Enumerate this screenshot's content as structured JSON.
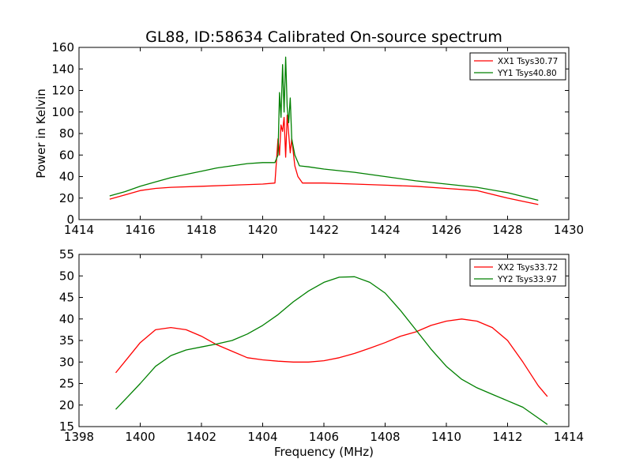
{
  "chart_data": [
    {
      "type": "line",
      "title": "GL88, ID:58634 Calibrated On-source spectrum",
      "xlabel": "",
      "ylabel": "Power in Kelvin",
      "xlim": [
        1414,
        1430
      ],
      "ylim": [
        0,
        160
      ],
      "xticks": [
        "1414",
        "1416",
        "1418",
        "1420",
        "1422",
        "1424",
        "1426",
        "1428",
        "1430"
      ],
      "yticks": [
        "0",
        "20",
        "40",
        "60",
        "80",
        "100",
        "120",
        "140",
        "160"
      ],
      "legend_position": "top-right",
      "series": [
        {
          "name": "XX1 Tsys30.77",
          "color": "#ff0000",
          "points": [
            [
              1415.0,
              19
            ],
            [
              1415.5,
              23
            ],
            [
              1416.0,
              27
            ],
            [
              1416.5,
              29
            ],
            [
              1417.0,
              30
            ],
            [
              1418.0,
              31
            ],
            [
              1419.0,
              32
            ],
            [
              1420.0,
              33
            ],
            [
              1420.4,
              34
            ],
            [
              1420.5,
              75
            ],
            [
              1420.55,
              60
            ],
            [
              1420.6,
              88
            ],
            [
              1420.65,
              82
            ],
            [
              1420.7,
              95
            ],
            [
              1420.75,
              58
            ],
            [
              1420.8,
              97
            ],
            [
              1420.85,
              80
            ],
            [
              1420.9,
              62
            ],
            [
              1420.95,
              75
            ],
            [
              1421.05,
              50
            ],
            [
              1421.15,
              40
            ],
            [
              1421.3,
              34
            ],
            [
              1422.0,
              34
            ],
            [
              1423.0,
              33
            ],
            [
              1424.0,
              32
            ],
            [
              1425.0,
              31
            ],
            [
              1426.0,
              29
            ],
            [
              1427.0,
              27
            ],
            [
              1428.0,
              20
            ],
            [
              1429.0,
              14
            ]
          ]
        },
        {
          "name": "YY1 Tsys40.80",
          "color": "#008000",
          "points": [
            [
              1415.0,
              22
            ],
            [
              1415.5,
              26
            ],
            [
              1416.0,
              31
            ],
            [
              1416.5,
              35
            ],
            [
              1417.0,
              39
            ],
            [
              1417.5,
              42
            ],
            [
              1418.0,
              45
            ],
            [
              1418.5,
              48
            ],
            [
              1419.0,
              50
            ],
            [
              1419.5,
              52
            ],
            [
              1420.0,
              53
            ],
            [
              1420.4,
              53
            ],
            [
              1420.5,
              60
            ],
            [
              1420.55,
              118
            ],
            [
              1420.6,
              95
            ],
            [
              1420.65,
              144
            ],
            [
              1420.7,
              100
            ],
            [
              1420.75,
              151
            ],
            [
              1420.8,
              105
            ],
            [
              1420.85,
              90
            ],
            [
              1420.9,
              113
            ],
            [
              1420.95,
              75
            ],
            [
              1421.05,
              60
            ],
            [
              1421.2,
              50
            ],
            [
              1421.5,
              49
            ],
            [
              1422.0,
              47
            ],
            [
              1423.0,
              44
            ],
            [
              1424.0,
              40
            ],
            [
              1425.0,
              36
            ],
            [
              1426.0,
              33
            ],
            [
              1427.0,
              30
            ],
            [
              1428.0,
              25
            ],
            [
              1429.0,
              18
            ]
          ]
        }
      ]
    },
    {
      "type": "line",
      "title": "",
      "xlabel": "Frequency (MHz)",
      "ylabel": "",
      "xlim": [
        1398,
        1414
      ],
      "ylim": [
        15,
        55
      ],
      "xticks": [
        "1398",
        "1400",
        "1402",
        "1404",
        "1406",
        "1408",
        "1410",
        "1412",
        "1414"
      ],
      "yticks": [
        "15",
        "20",
        "25",
        "30",
        "35",
        "40",
        "45",
        "50",
        "55"
      ],
      "legend_position": "top-right",
      "series": [
        {
          "name": "XX2 Tsys33.72",
          "color": "#ff0000",
          "points": [
            [
              1399.2,
              27.5
            ],
            [
              1399.6,
              31
            ],
            [
              1400.0,
              34.5
            ],
            [
              1400.5,
              37.5
            ],
            [
              1401.0,
              38
            ],
            [
              1401.5,
              37.5
            ],
            [
              1402.0,
              36
            ],
            [
              1402.5,
              34
            ],
            [
              1403.0,
              32.5
            ],
            [
              1403.5,
              31
            ],
            [
              1404.0,
              30.5
            ],
            [
              1404.5,
              30.2
            ],
            [
              1405.0,
              30
            ],
            [
              1405.5,
              30
            ],
            [
              1406.0,
              30.3
            ],
            [
              1406.5,
              31
            ],
            [
              1407.0,
              32
            ],
            [
              1407.5,
              33.2
            ],
            [
              1408.0,
              34.5
            ],
            [
              1408.5,
              36
            ],
            [
              1409.0,
              37
            ],
            [
              1409.5,
              38.5
            ],
            [
              1410.0,
              39.5
            ],
            [
              1410.5,
              40
            ],
            [
              1411.0,
              39.5
            ],
            [
              1411.5,
              38
            ],
            [
              1412.0,
              35
            ],
            [
              1412.5,
              30
            ],
            [
              1413.0,
              24.5
            ],
            [
              1413.3,
              22
            ]
          ]
        },
        {
          "name": "YY2 Tsys33.97",
          "color": "#008000",
          "points": [
            [
              1399.2,
              19
            ],
            [
              1399.6,
              22
            ],
            [
              1400.0,
              25
            ],
            [
              1400.5,
              29
            ],
            [
              1401.0,
              31.5
            ],
            [
              1401.5,
              32.8
            ],
            [
              1402.0,
              33.5
            ],
            [
              1402.5,
              34.2
            ],
            [
              1403.0,
              35
            ],
            [
              1403.5,
              36.5
            ],
            [
              1404.0,
              38.5
            ],
            [
              1404.5,
              41
            ],
            [
              1405.0,
              44
            ],
            [
              1405.5,
              46.5
            ],
            [
              1406.0,
              48.5
            ],
            [
              1406.5,
              49.7
            ],
            [
              1407.0,
              49.8
            ],
            [
              1407.5,
              48.5
            ],
            [
              1408.0,
              46
            ],
            [
              1408.5,
              42
            ],
            [
              1409.0,
              37.5
            ],
            [
              1409.5,
              33
            ],
            [
              1410.0,
              29
            ],
            [
              1410.5,
              26
            ],
            [
              1411.0,
              24
            ],
            [
              1411.5,
              22.5
            ],
            [
              1412.0,
              21
            ],
            [
              1412.5,
              19.5
            ],
            [
              1413.0,
              17
            ],
            [
              1413.3,
              15.5
            ]
          ]
        }
      ]
    }
  ]
}
